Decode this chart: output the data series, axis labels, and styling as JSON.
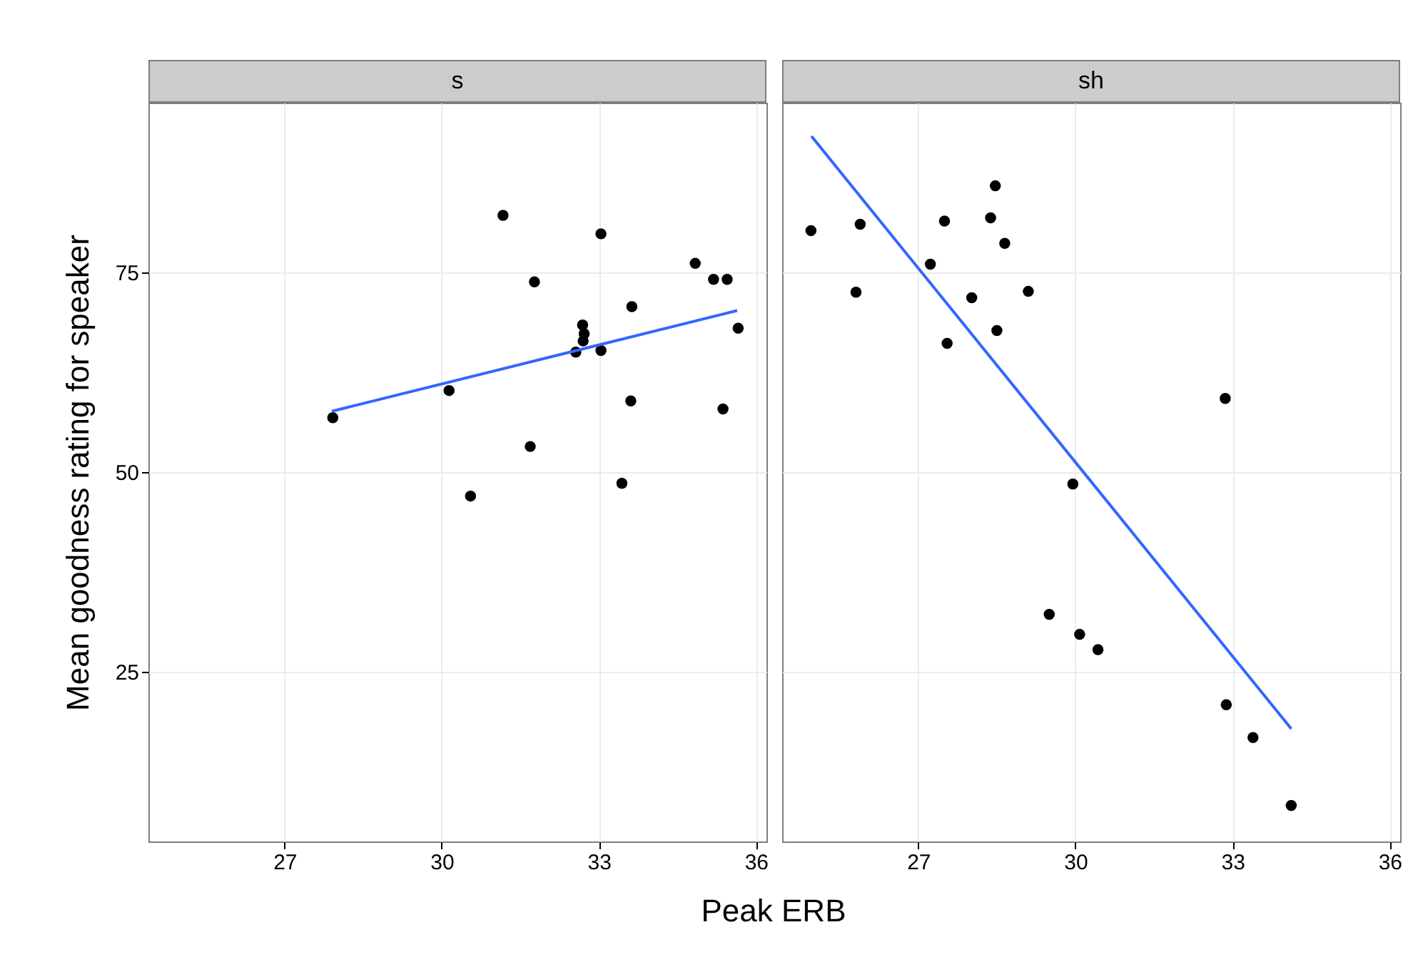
{
  "chart_data": [
    {
      "type": "scatter",
      "title": "s",
      "xlabel": "Peak ERB",
      "ylabel": "Mean goodness rating for speaker",
      "xlim": [
        24.4,
        36.2
      ],
      "ylim": [
        3.8,
        96.2
      ],
      "xticks": [
        27,
        30,
        33,
        36
      ],
      "yticks": [
        25,
        50,
        75
      ],
      "grid": true,
      "series": [
        {
          "color": "#000000",
          "marker": "circle",
          "x": [
            27.92,
            30.14,
            30.55,
            31.17,
            31.69,
            31.77,
            32.69,
            32.72,
            32.7,
            32.56,
            33.04,
            33.04,
            33.63,
            33.61,
            33.44,
            34.84,
            35.19,
            35.45,
            35.66,
            35.37
          ],
          "values": [
            56.8,
            60.2,
            47.0,
            82.1,
            53.2,
            73.8,
            68.4,
            67.3,
            66.4,
            65.0,
            65.2,
            79.8,
            70.7,
            58.9,
            48.6,
            76.1,
            74.1,
            74.1,
            68.0,
            57.9
          ]
        },
        {
          "type": "line",
          "color": "#3366ff",
          "line_style": "solid",
          "x": [
            27.9,
            35.64
          ],
          "values": [
            57.6,
            70.2
          ]
        }
      ]
    },
    {
      "type": "scatter",
      "title": "sh",
      "xlim": [
        24.4,
        36.2
      ],
      "ylim": [
        3.8,
        96.2
      ],
      "xticks": [
        27,
        30,
        33,
        36
      ],
      "yticks": [
        25,
        50,
        75
      ],
      "grid": true,
      "tick_labels": "x",
      "series": [
        {
          "color": "#000000",
          "marker": "circle",
          "x": [
            24.95,
            25.89,
            25.81,
            27.5,
            27.23,
            27.55,
            28.02,
            28.38,
            28.47,
            28.65,
            28.5,
            29.1,
            32.86,
            29.95,
            29.5,
            30.08,
            30.43,
            32.88,
            33.39,
            34.12
          ],
          "values": [
            80.2,
            81.0,
            72.5,
            81.4,
            76.0,
            66.1,
            71.8,
            81.8,
            85.8,
            78.6,
            67.7,
            72.6,
            59.2,
            48.5,
            32.2,
            29.7,
            27.8,
            20.9,
            16.8,
            8.3
          ]
        },
        {
          "type": "line",
          "color": "#3366ff",
          "line_style": "solid",
          "x": [
            24.96,
            34.12
          ],
          "values": [
            92.0,
            17.9
          ]
        }
      ]
    }
  ]
}
